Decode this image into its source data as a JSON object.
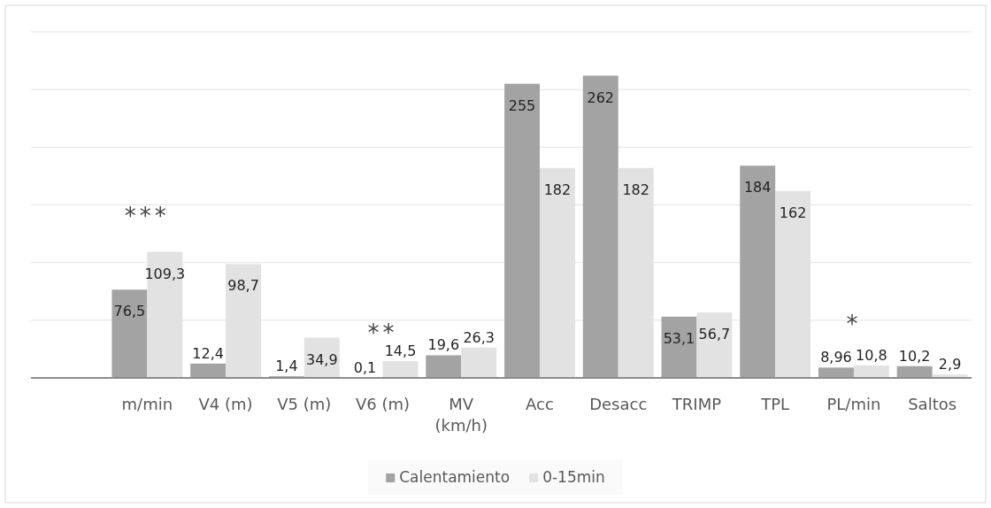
{
  "chart_data": {
    "type": "bar",
    "categories": [
      "m/min",
      "V4 (m)",
      "V5 (m)",
      "V6 (m)",
      "MV (km/h)",
      "Acc",
      "Desacc",
      "TRIMP",
      "TPL",
      "PL/min",
      "Saltos"
    ],
    "series": [
      {
        "name": "Calentamiento",
        "color": "#a3a3a3",
        "values": [
          76.5,
          12.4,
          1.4,
          0.1,
          19.6,
          255,
          262,
          53.1,
          184,
          8.96,
          10.2
        ],
        "value_labels": [
          "76,5",
          "12,4",
          "1,4",
          "0,1",
          "19,6",
          "255",
          "262",
          "53,1",
          "184",
          "8,96",
          "10,2"
        ]
      },
      {
        "name": "0-15min",
        "color": "#e2e2e2",
        "values": [
          109.3,
          98.7,
          34.9,
          14.5,
          26.3,
          182,
          182,
          56.7,
          162,
          10.8,
          2.9
        ],
        "value_labels": [
          "109,3",
          "98,7",
          "34,9",
          "14,5",
          "26,3",
          "182",
          "182",
          "56,7",
          "162",
          "10,8",
          "2,9"
        ]
      }
    ],
    "ylim": [
      0,
      300
    ],
    "yticks": [
      {
        "value": 0,
        "label": null
      },
      {
        "value": 50,
        "label": null
      },
      {
        "value": 100,
        "label": null
      },
      {
        "value": 150,
        "label": null
      },
      {
        "value": 200,
        "label": null
      },
      {
        "value": 250,
        "label": null
      },
      {
        "value": 300,
        "label": null
      }
    ],
    "tick_labels": "x",
    "grid": "y",
    "legend": "bottom",
    "annotations": [
      "***",
      "**",
      "*"
    ]
  }
}
